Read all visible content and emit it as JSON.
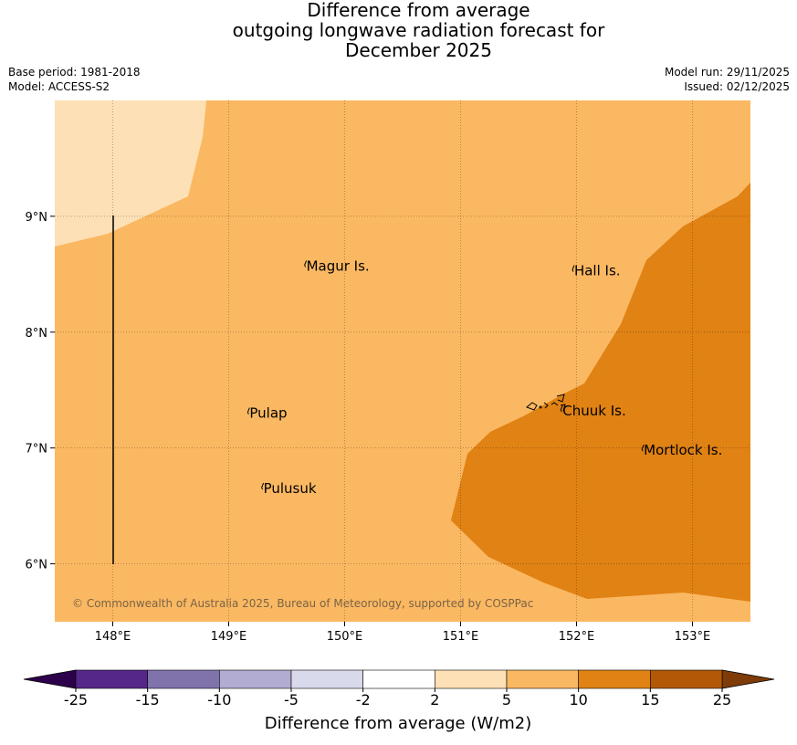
{
  "title": {
    "line1": "Difference from average",
    "line2": "outgoing longwave radiation forecast for",
    "line3": "December 2025"
  },
  "meta": {
    "base_period": "Base period: 1981-2018",
    "model": "Model: ACCESS-S2",
    "model_run": "Model run: 29/11/2025",
    "issued": "Issued: 02/12/2025"
  },
  "map": {
    "lon_range": [
      147.5,
      153.5
    ],
    "lat_range": [
      5.5,
      10.0
    ],
    "lon_ticks": [
      {
        "value": 148,
        "label": "148°E"
      },
      {
        "value": 149,
        "label": "149°E"
      },
      {
        "value": 150,
        "label": "150°E"
      },
      {
        "value": 151,
        "label": "151°E"
      },
      {
        "value": 152,
        "label": "152°E"
      },
      {
        "value": 153,
        "label": "153°E"
      }
    ],
    "lat_ticks": [
      {
        "value": 9,
        "label": "9°N"
      },
      {
        "value": 8,
        "label": "8°N"
      },
      {
        "value": 7,
        "label": "7°N"
      },
      {
        "value": 6,
        "label": "6°N"
      }
    ],
    "places": [
      {
        "name": "Magur Is.",
        "lon": 149.67,
        "lat": 8.57
      },
      {
        "name": "Hall Is.",
        "lon": 151.98,
        "lat": 8.53
      },
      {
        "name": "Pulap",
        "lon": 149.18,
        "lat": 7.3
      },
      {
        "name": "Chuuk Is.",
        "lon": 151.88,
        "lat": 7.32
      },
      {
        "name": "Mortlock Is.",
        "lon": 152.58,
        "lat": 6.98
      },
      {
        "name": "Pulusuk",
        "lon": 149.3,
        "lat": 6.65
      }
    ],
    "copyright": "© Commonwealth of Australia 2025, Bureau of Meteorology, supported by COSPPac",
    "colors": {
      "range_2_5": "#fde0b6",
      "range_5_10": "#fbb862",
      "range_10_15": "#e08214"
    }
  },
  "colorbar": {
    "label": "Difference from average (W/m2)",
    "ticks": [
      "-25",
      "-15",
      "-10",
      "-5",
      "-2",
      "2",
      "5",
      "10",
      "15",
      "25"
    ],
    "colors": [
      "#542788",
      "#8073ac",
      "#b2abd2",
      "#d8daeb",
      "#ffffff",
      "#fde0b6",
      "#fbb862",
      "#e08214",
      "#b35806"
    ],
    "under_color": "#2d004b",
    "over_color": "#7f3b08"
  }
}
